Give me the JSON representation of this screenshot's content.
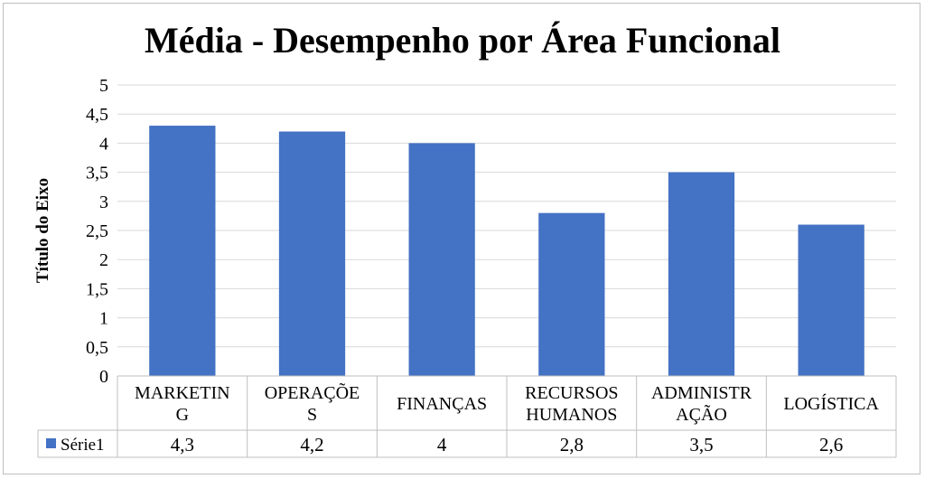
{
  "chart_data": {
    "type": "bar",
    "title": "Média - Desempenho por Área Funcional",
    "ylabel": "Título do Eixo",
    "xlabel": "",
    "ylim": [
      0,
      5
    ],
    "ytick_step": 0.5,
    "yticks": [
      "0",
      "0,5",
      "1",
      "1,5",
      "2",
      "2,5",
      "3",
      "3,5",
      "4",
      "4,5",
      "5"
    ],
    "grid": true,
    "legend": "data-table-left",
    "categories": [
      "MARKETING",
      "OPERAÇÕES",
      "FINANÇAS",
      "RECURSOS HUMANOS",
      "ADMINISTRAÇÃO",
      "LOGÍSTICA"
    ],
    "category_label_lines": [
      [
        "MARKETIN",
        "G"
      ],
      [
        "OPERAÇÕE",
        "S"
      ],
      [
        "FINANÇAS"
      ],
      [
        "RECURSOS",
        "HUMANOS"
      ],
      [
        "ADMINISTR",
        "AÇÃO"
      ],
      [
        "LOGÍSTICA"
      ]
    ],
    "series": [
      {
        "name": "Série1",
        "color": "#4472c4",
        "values": [
          4.3,
          4.2,
          4.0,
          2.8,
          3.5,
          2.6
        ],
        "value_labels": [
          "4,3",
          "4,2",
          "4",
          "2,8",
          "3,5",
          "2,6"
        ]
      }
    ]
  }
}
